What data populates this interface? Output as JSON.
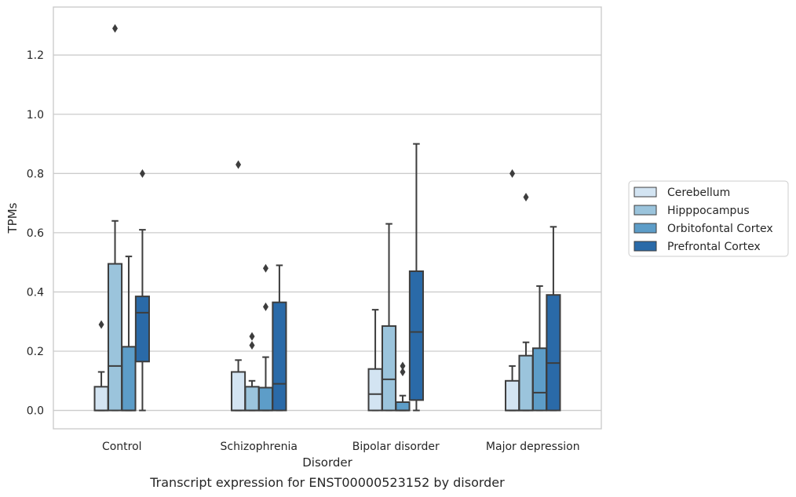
{
  "caption": "Transcript expression for ENST00000523152 by disorder",
  "chart_data": {
    "type": "boxplot",
    "xlabel": "Disorder",
    "ylabel": "TPMs",
    "ylim": [
      -0.062,
      1.362
    ],
    "yticks": [
      0.0,
      0.2,
      0.4,
      0.6,
      0.8,
      1.0,
      1.2
    ],
    "ytick_labels": [
      "0.0",
      "0.2",
      "0.4",
      "0.6",
      "0.8",
      "1.0",
      "1.2"
    ],
    "grid": "horizontal",
    "legend_position": "right",
    "categories": [
      "Control",
      "Schizophrenia",
      "Bipolar disorder",
      "Major depression"
    ],
    "series": [
      {
        "name": "Cerebellum",
        "color": "#d3e4f2",
        "boxes": [
          {
            "q1": 0.0,
            "median": 0.0,
            "q3": 0.08,
            "whisker_low": 0.0,
            "whisker_high": 0.13,
            "outliers": [
              0.29
            ]
          },
          {
            "q1": 0.0,
            "median": 0.0,
            "q3": 0.13,
            "whisker_low": 0.0,
            "whisker_high": 0.17,
            "outliers": [
              0.83
            ]
          },
          {
            "q1": 0.0,
            "median": 0.055,
            "q3": 0.14,
            "whisker_low": 0.0,
            "whisker_high": 0.34,
            "outliers": []
          },
          {
            "q1": 0.0,
            "median": 0.0,
            "q3": 0.1,
            "whisker_low": 0.0,
            "whisker_high": 0.15,
            "outliers": [
              0.8
            ]
          }
        ]
      },
      {
        "name": "Hipppocampus",
        "color": "#9bc4dc",
        "boxes": [
          {
            "q1": 0.0,
            "median": 0.15,
            "q3": 0.495,
            "whisker_low": 0.0,
            "whisker_high": 0.64,
            "outliers": [
              1.29
            ]
          },
          {
            "q1": 0.0,
            "median": 0.0,
            "q3": 0.08,
            "whisker_low": 0.0,
            "whisker_high": 0.1,
            "outliers": [
              0.22,
              0.25
            ]
          },
          {
            "q1": 0.0,
            "median": 0.105,
            "q3": 0.285,
            "whisker_low": 0.0,
            "whisker_high": 0.63,
            "outliers": []
          },
          {
            "q1": 0.0,
            "median": 0.0,
            "q3": 0.185,
            "whisker_low": 0.0,
            "whisker_high": 0.23,
            "outliers": [
              0.72
            ]
          }
        ]
      },
      {
        "name": "Orbitofontal Cortex",
        "color": "#5d9dc8",
        "boxes": [
          {
            "q1": 0.0,
            "median": 0.0,
            "q3": 0.215,
            "whisker_low": 0.0,
            "whisker_high": 0.52,
            "outliers": []
          },
          {
            "q1": 0.0,
            "median": 0.0,
            "q3": 0.077,
            "whisker_low": 0.0,
            "whisker_high": 0.18,
            "outliers": [
              0.35,
              0.48
            ]
          },
          {
            "q1": 0.0,
            "median": 0.0,
            "q3": 0.028,
            "whisker_low": 0.0,
            "whisker_high": 0.05,
            "outliers": [
              0.13,
              0.15
            ]
          },
          {
            "q1": 0.0,
            "median": 0.06,
            "q3": 0.21,
            "whisker_low": 0.0,
            "whisker_high": 0.42,
            "outliers": []
          }
        ]
      },
      {
        "name": "Prefrontal Cortex",
        "color": "#2a6aa8",
        "boxes": [
          {
            "q1": 0.165,
            "median": 0.33,
            "q3": 0.385,
            "whisker_low": 0.0,
            "whisker_high": 0.61,
            "outliers": [
              0.8
            ]
          },
          {
            "q1": 0.0,
            "median": 0.09,
            "q3": 0.365,
            "whisker_low": 0.0,
            "whisker_high": 0.49,
            "outliers": []
          },
          {
            "q1": 0.035,
            "median": 0.265,
            "q3": 0.47,
            "whisker_low": 0.0,
            "whisker_high": 0.9,
            "outliers": []
          },
          {
            "q1": 0.0,
            "median": 0.16,
            "q3": 0.39,
            "whisker_low": 0.0,
            "whisker_high": 0.62,
            "outliers": []
          }
        ]
      }
    ]
  }
}
